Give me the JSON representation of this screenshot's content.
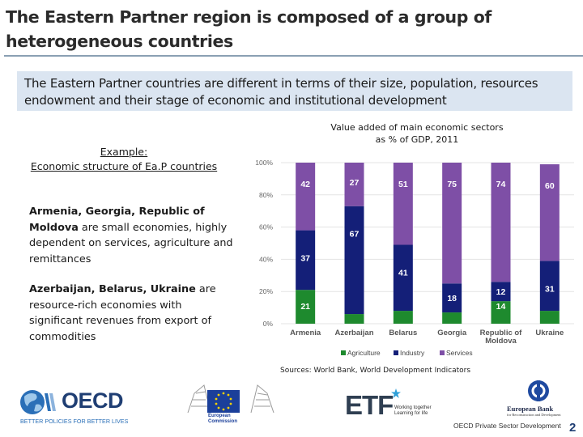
{
  "title": "The Eastern Partner region is composed of a group of heterogeneous countries",
  "subtitle": "The Eastern Partner countries are different in terms of their size, population, resources endowment and their stage of economic and institutional development",
  "example": {
    "line1": "Example:",
    "line2": "Economic structure of Ea.P countries"
  },
  "paragraph1": {
    "bold": "Armenia, Georgia, Republic of Moldova",
    "rest": " are small economies, highly dependent on services, agriculture and remittances"
  },
  "paragraph2": {
    "bold": "Azerbaijan, Belarus, Ukraine",
    "rest": "  are resource-rich economies with significant revenues from export of commodities"
  },
  "chart_title_line1": "Value added of main economic sectors",
  "chart_title_line2": "as % of GDP, 2011",
  "sources": "Sources: World Bank, World Development Indicators",
  "footer_text": "OECD Private Sector Development",
  "page_number": "2",
  "logos": {
    "oecd_name": "OECD",
    "oecd_tagline": "BETTER POLICIES FOR BETTER LIVES",
    "eu_caption_line1": "European",
    "eu_caption_line2": "Commission",
    "etf_name": "ETF",
    "etf_tagline_line1": "Working together",
    "etf_tagline_line2": "Learning for life",
    "ebrd_line1": "European Bank",
    "ebrd_line2": "for Reconstruction and Development"
  },
  "colors": {
    "agriculture": "#1e8a2e",
    "industry": "#141f78",
    "services": "#7e4fa6"
  },
  "chart_data": {
    "type": "bar",
    "stacked": true,
    "title": "Value added of main economic sectors as % of GDP, 2011",
    "categories": [
      "Armenia",
      "Azerbaijan",
      "Belarus",
      "Georgia",
      "Republic of Moldova",
      "Ukraine"
    ],
    "category_lines": [
      [
        "Armenia"
      ],
      [
        "Azerbaijan"
      ],
      [
        "Belarus"
      ],
      [
        "Georgia"
      ],
      [
        "Republic of",
        "Moldova"
      ],
      [
        "Ukraine"
      ]
    ],
    "series": [
      {
        "name": "Agriculture",
        "values": [
          21,
          6,
          8,
          7,
          14,
          8
        ]
      },
      {
        "name": "Industry",
        "values": [
          37,
          67,
          41,
          18,
          12,
          31
        ]
      },
      {
        "name": "Services",
        "values": [
          42,
          27,
          51,
          75,
          74,
          60
        ]
      }
    ],
    "y_ticks": [
      "0%",
      "20%",
      "40%",
      "60%",
      "80%",
      "100%"
    ],
    "y_tick_values": [
      0,
      20,
      40,
      60,
      80,
      100
    ],
    "ylim": [
      0,
      100
    ],
    "legend": [
      "Agriculture",
      "Industry",
      "Services"
    ],
    "legend_position": "bottom"
  }
}
